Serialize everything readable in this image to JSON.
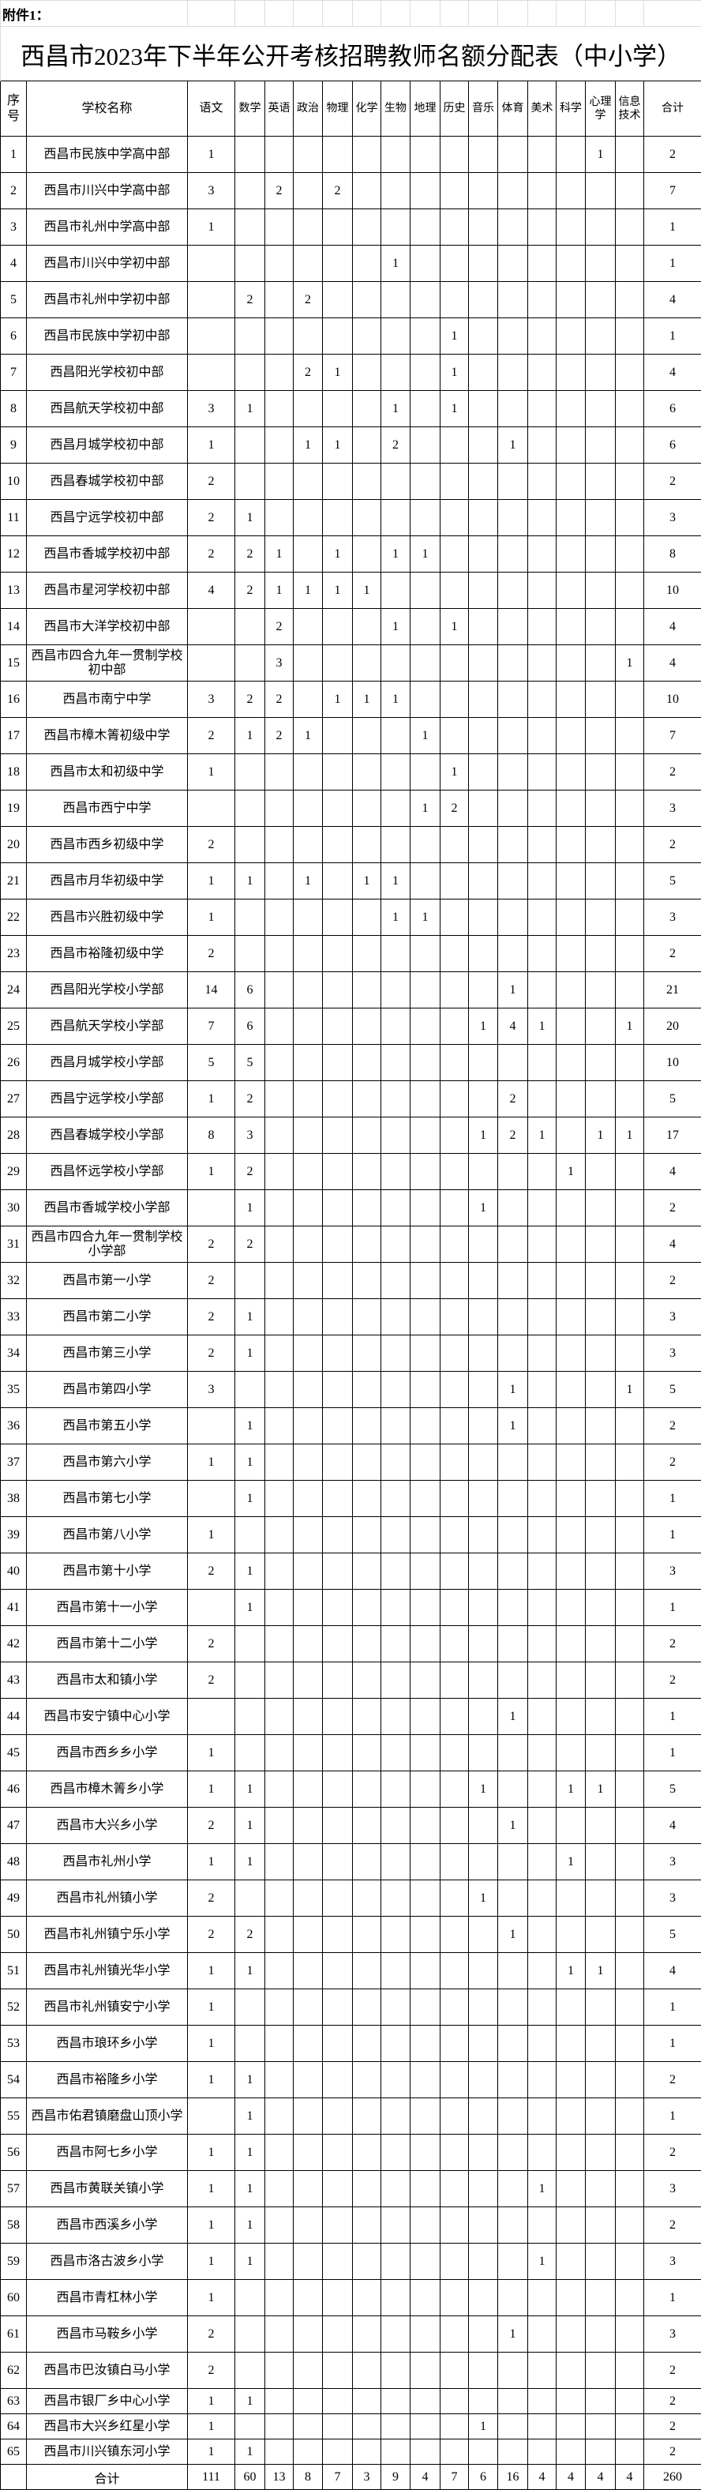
{
  "attachment_label": "附件1：",
  "title": "西昌市2023年下半年公开考核招聘教师名额分配表（中小学）",
  "header": {
    "index": "序号",
    "school": "学校名称",
    "subjects": [
      "语文",
      "数学",
      "英语",
      "政治",
      "物理",
      "化学",
      "生物",
      "地理",
      "历史",
      "音乐",
      "体育",
      "美术",
      "科学",
      "心理学",
      "信息技术"
    ],
    "total": "合计"
  },
  "rows": [
    {
      "no": "1",
      "name": "西昌市民族中学高中部",
      "v": [
        1,
        null,
        null,
        null,
        null,
        null,
        null,
        null,
        null,
        null,
        null,
        null,
        null,
        1,
        null
      ],
      "total": 2
    },
    {
      "no": "2",
      "name": "西昌市川兴中学高中部",
      "v": [
        3,
        null,
        2,
        null,
        2,
        null,
        null,
        null,
        null,
        null,
        null,
        null,
        null,
        null,
        null
      ],
      "total": 7
    },
    {
      "no": "3",
      "name": "西昌市礼州中学高中部",
      "v": [
        1,
        null,
        null,
        null,
        null,
        null,
        null,
        null,
        null,
        null,
        null,
        null,
        null,
        null,
        null
      ],
      "total": 1
    },
    {
      "no": "4",
      "name": "西昌市川兴中学初中部",
      "v": [
        null,
        null,
        null,
        null,
        null,
        null,
        1,
        null,
        null,
        null,
        null,
        null,
        null,
        null,
        null
      ],
      "total": 1
    },
    {
      "no": "5",
      "name": "西昌市礼州中学初中部",
      "v": [
        null,
        2,
        null,
        2,
        null,
        null,
        null,
        null,
        null,
        null,
        null,
        null,
        null,
        null,
        null
      ],
      "total": 4
    },
    {
      "no": "6",
      "name": "西昌市民族中学初中部",
      "v": [
        null,
        null,
        null,
        null,
        null,
        null,
        null,
        null,
        1,
        null,
        null,
        null,
        null,
        null,
        null
      ],
      "total": 1
    },
    {
      "no": "7",
      "name": "西昌阳光学校初中部",
      "v": [
        null,
        null,
        null,
        2,
        1,
        null,
        null,
        null,
        1,
        null,
        null,
        null,
        null,
        null,
        null
      ],
      "total": 4
    },
    {
      "no": "8",
      "name": "西昌航天学校初中部",
      "v": [
        3,
        1,
        null,
        null,
        null,
        null,
        1,
        null,
        1,
        null,
        null,
        null,
        null,
        null,
        null
      ],
      "total": 6
    },
    {
      "no": "9",
      "name": "西昌月城学校初中部",
      "v": [
        1,
        null,
        null,
        1,
        1,
        null,
        2,
        null,
        null,
        null,
        1,
        null,
        null,
        null,
        null
      ],
      "total": 6
    },
    {
      "no": "10",
      "name": "西昌春城学校初中部",
      "v": [
        2,
        null,
        null,
        null,
        null,
        null,
        null,
        null,
        null,
        null,
        null,
        null,
        null,
        null,
        null
      ],
      "total": 2
    },
    {
      "no": "11",
      "name": "西昌宁远学校初中部",
      "v": [
        2,
        1,
        null,
        null,
        null,
        null,
        null,
        null,
        null,
        null,
        null,
        null,
        null,
        null,
        null
      ],
      "total": 3
    },
    {
      "no": "12",
      "name": "西昌市香城学校初中部",
      "v": [
        2,
        2,
        1,
        null,
        1,
        null,
        1,
        1,
        null,
        null,
        null,
        null,
        null,
        null,
        null
      ],
      "total": 8
    },
    {
      "no": "13",
      "name": "西昌市星河学校初中部",
      "v": [
        4,
        2,
        1,
        1,
        1,
        1,
        null,
        null,
        null,
        null,
        null,
        null,
        null,
        null,
        null
      ],
      "total": 10
    },
    {
      "no": "14",
      "name": "西昌市大洋学校初中部",
      "v": [
        null,
        null,
        2,
        null,
        null,
        null,
        1,
        null,
        1,
        null,
        null,
        null,
        null,
        null,
        null
      ],
      "total": 4
    },
    {
      "no": "15",
      "name": "西昌市四合九年一贯制学校初中部",
      "v": [
        null,
        null,
        3,
        null,
        null,
        null,
        null,
        null,
        null,
        null,
        null,
        null,
        null,
        null,
        1
      ],
      "total": 4
    },
    {
      "no": "16",
      "name": "西昌市南宁中学",
      "v": [
        3,
        2,
        2,
        null,
        1,
        1,
        1,
        null,
        null,
        null,
        null,
        null,
        null,
        null,
        null
      ],
      "total": 10
    },
    {
      "no": "17",
      "name": "西昌市樟木箐初级中学",
      "v": [
        2,
        1,
        2,
        1,
        null,
        null,
        null,
        1,
        null,
        null,
        null,
        null,
        null,
        null,
        null
      ],
      "total": 7
    },
    {
      "no": "18",
      "name": "西昌市太和初级中学",
      "v": [
        1,
        null,
        null,
        null,
        null,
        null,
        null,
        null,
        1,
        null,
        null,
        null,
        null,
        null,
        null
      ],
      "total": 2
    },
    {
      "no": "19",
      "name": "西昌市西宁中学",
      "v": [
        null,
        null,
        null,
        null,
        null,
        null,
        null,
        1,
        2,
        null,
        null,
        null,
        null,
        null,
        null
      ],
      "total": 3
    },
    {
      "no": "20",
      "name": "西昌市西乡初级中学",
      "v": [
        2,
        null,
        null,
        null,
        null,
        null,
        null,
        null,
        null,
        null,
        null,
        null,
        null,
        null,
        null
      ],
      "total": 2
    },
    {
      "no": "21",
      "name": "西昌市月华初级中学",
      "v": [
        1,
        1,
        null,
        1,
        null,
        1,
        1,
        null,
        null,
        null,
        null,
        null,
        null,
        null,
        null
      ],
      "total": 5
    },
    {
      "no": "22",
      "name": "西昌市兴胜初级中学",
      "v": [
        1,
        null,
        null,
        null,
        null,
        null,
        1,
        1,
        null,
        null,
        null,
        null,
        null,
        null,
        null
      ],
      "total": 3
    },
    {
      "no": "23",
      "name": "西昌市裕隆初级中学",
      "v": [
        2,
        null,
        null,
        null,
        null,
        null,
        null,
        null,
        null,
        null,
        null,
        null,
        null,
        null,
        null
      ],
      "total": 2
    },
    {
      "no": "24",
      "name": "西昌阳光学校小学部",
      "v": [
        14,
        6,
        null,
        null,
        null,
        null,
        null,
        null,
        null,
        null,
        1,
        null,
        null,
        null,
        null
      ],
      "total": 21
    },
    {
      "no": "25",
      "name": "西昌航天学校小学部",
      "v": [
        7,
        6,
        null,
        null,
        null,
        null,
        null,
        null,
        null,
        1,
        4,
        1,
        null,
        null,
        1
      ],
      "total": 20
    },
    {
      "no": "26",
      "name": "西昌月城学校小学部",
      "v": [
        5,
        5,
        null,
        null,
        null,
        null,
        null,
        null,
        null,
        null,
        null,
        null,
        null,
        null,
        null
      ],
      "total": 10
    },
    {
      "no": "27",
      "name": "西昌宁远学校小学部",
      "v": [
        1,
        2,
        null,
        null,
        null,
        null,
        null,
        null,
        null,
        null,
        2,
        null,
        null,
        null,
        null
      ],
      "total": 5
    },
    {
      "no": "28",
      "name": "西昌春城学校小学部",
      "v": [
        8,
        3,
        null,
        null,
        null,
        null,
        null,
        null,
        null,
        1,
        2,
        1,
        null,
        1,
        1
      ],
      "total": 17
    },
    {
      "no": "29",
      "name": "西昌怀远学校小学部",
      "v": [
        1,
        2,
        null,
        null,
        null,
        null,
        null,
        null,
        null,
        null,
        null,
        null,
        1,
        null,
        null
      ],
      "total": 4
    },
    {
      "no": "30",
      "name": "西昌市香城学校小学部",
      "v": [
        null,
        1,
        null,
        null,
        null,
        null,
        null,
        null,
        null,
        1,
        null,
        null,
        null,
        null,
        null
      ],
      "total": 2
    },
    {
      "no": "31",
      "name": "西昌市四合九年一贯制学校小学部",
      "v": [
        2,
        2,
        null,
        null,
        null,
        null,
        null,
        null,
        null,
        null,
        null,
        null,
        null,
        null,
        null
      ],
      "total": 4
    },
    {
      "no": "32",
      "name": "西昌市第一小学",
      "v": [
        2,
        null,
        null,
        null,
        null,
        null,
        null,
        null,
        null,
        null,
        null,
        null,
        null,
        null,
        null
      ],
      "total": 2
    },
    {
      "no": "33",
      "name": "西昌市第二小学",
      "v": [
        2,
        1,
        null,
        null,
        null,
        null,
        null,
        null,
        null,
        null,
        null,
        null,
        null,
        null,
        null
      ],
      "total": 3
    },
    {
      "no": "34",
      "name": "西昌市第三小学",
      "v": [
        2,
        1,
        null,
        null,
        null,
        null,
        null,
        null,
        null,
        null,
        null,
        null,
        null,
        null,
        null
      ],
      "total": 3
    },
    {
      "no": "35",
      "name": "西昌市第四小学",
      "v": [
        3,
        null,
        null,
        null,
        null,
        null,
        null,
        null,
        null,
        null,
        1,
        null,
        null,
        null,
        1
      ],
      "total": 5
    },
    {
      "no": "36",
      "name": "西昌市第五小学",
      "v": [
        null,
        1,
        null,
        null,
        null,
        null,
        null,
        null,
        null,
        null,
        1,
        null,
        null,
        null,
        null
      ],
      "total": 2
    },
    {
      "no": "37",
      "name": "西昌市第六小学",
      "v": [
        1,
        1,
        null,
        null,
        null,
        null,
        null,
        null,
        null,
        null,
        null,
        null,
        null,
        null,
        null
      ],
      "total": 2
    },
    {
      "no": "38",
      "name": "西昌市第七小学",
      "v": [
        null,
        1,
        null,
        null,
        null,
        null,
        null,
        null,
        null,
        null,
        null,
        null,
        null,
        null,
        null
      ],
      "total": 1
    },
    {
      "no": "39",
      "name": "西昌市第八小学",
      "v": [
        1,
        null,
        null,
        null,
        null,
        null,
        null,
        null,
        null,
        null,
        null,
        null,
        null,
        null,
        null
      ],
      "total": 1
    },
    {
      "no": "40",
      "name": "西昌市第十小学",
      "v": [
        2,
        1,
        null,
        null,
        null,
        null,
        null,
        null,
        null,
        null,
        null,
        null,
        null,
        null,
        null
      ],
      "total": 3
    },
    {
      "no": "41",
      "name": "西昌市第十一小学",
      "v": [
        null,
        1,
        null,
        null,
        null,
        null,
        null,
        null,
        null,
        null,
        null,
        null,
        null,
        null,
        null
      ],
      "total": 1
    },
    {
      "no": "42",
      "name": "西昌市第十二小学",
      "v": [
        2,
        null,
        null,
        null,
        null,
        null,
        null,
        null,
        null,
        null,
        null,
        null,
        null,
        null,
        null
      ],
      "total": 2
    },
    {
      "no": "43",
      "name": "西昌市太和镇小学",
      "v": [
        2,
        null,
        null,
        null,
        null,
        null,
        null,
        null,
        null,
        null,
        null,
        null,
        null,
        null,
        null
      ],
      "total": 2
    },
    {
      "no": "44",
      "name": "西昌市安宁镇中心小学",
      "v": [
        null,
        null,
        null,
        null,
        null,
        null,
        null,
        null,
        null,
        null,
        1,
        null,
        null,
        null,
        null
      ],
      "total": 1
    },
    {
      "no": "45",
      "name": "西昌市西乡乡小学",
      "v": [
        1,
        null,
        null,
        null,
        null,
        null,
        null,
        null,
        null,
        null,
        null,
        null,
        null,
        null,
        null
      ],
      "total": 1
    },
    {
      "no": "46",
      "name": "西昌市樟木箐乡小学",
      "v": [
        1,
        1,
        null,
        null,
        null,
        null,
        null,
        null,
        null,
        1,
        null,
        null,
        1,
        1,
        null
      ],
      "total": 5
    },
    {
      "no": "47",
      "name": "西昌市大兴乡小学",
      "v": [
        2,
        1,
        null,
        null,
        null,
        null,
        null,
        null,
        null,
        null,
        1,
        null,
        null,
        null,
        null
      ],
      "total": 4
    },
    {
      "no": "48",
      "name": "西昌市礼州小学",
      "v": [
        1,
        1,
        null,
        null,
        null,
        null,
        null,
        null,
        null,
        null,
        null,
        null,
        1,
        null,
        null
      ],
      "total": 3
    },
    {
      "no": "49",
      "name": "西昌市礼州镇小学",
      "v": [
        2,
        null,
        null,
        null,
        null,
        null,
        null,
        null,
        null,
        1,
        null,
        null,
        null,
        null,
        null
      ],
      "total": 3
    },
    {
      "no": "50",
      "name": "西昌市礼州镇宁乐小学",
      "v": [
        2,
        2,
        null,
        null,
        null,
        null,
        null,
        null,
        null,
        null,
        1,
        null,
        null,
        null,
        null
      ],
      "total": 5
    },
    {
      "no": "51",
      "name": "西昌市礼州镇光华小学",
      "v": [
        1,
        1,
        null,
        null,
        null,
        null,
        null,
        null,
        null,
        null,
        null,
        null,
        1,
        1,
        null
      ],
      "total": 4
    },
    {
      "no": "52",
      "name": "西昌市礼州镇安宁小学",
      "v": [
        1,
        null,
        null,
        null,
        null,
        null,
        null,
        null,
        null,
        null,
        null,
        null,
        null,
        null,
        null
      ],
      "total": 1
    },
    {
      "no": "53",
      "name": "西昌市琅环乡小学",
      "v": [
        1,
        null,
        null,
        null,
        null,
        null,
        null,
        null,
        null,
        null,
        null,
        null,
        null,
        null,
        null
      ],
      "total": 1
    },
    {
      "no": "54",
      "name": "西昌市裕隆乡小学",
      "v": [
        1,
        1,
        null,
        null,
        null,
        null,
        null,
        null,
        null,
        null,
        null,
        null,
        null,
        null,
        null
      ],
      "total": 2
    },
    {
      "no": "55",
      "name": "西昌市佑君镇磨盘山顶小学",
      "v": [
        null,
        1,
        null,
        null,
        null,
        null,
        null,
        null,
        null,
        null,
        null,
        null,
        null,
        null,
        null
      ],
      "total": 1
    },
    {
      "no": "56",
      "name": "西昌市阿七乡小学",
      "v": [
        1,
        1,
        null,
        null,
        null,
        null,
        null,
        null,
        null,
        null,
        null,
        null,
        null,
        null,
        null
      ],
      "total": 2
    },
    {
      "no": "57",
      "name": "西昌市黄联关镇小学",
      "v": [
        1,
        1,
        null,
        null,
        null,
        null,
        null,
        null,
        null,
        null,
        null,
        1,
        null,
        null,
        null
      ],
      "total": 3
    },
    {
      "no": "58",
      "name": "西昌市西溪乡小学",
      "v": [
        1,
        1,
        null,
        null,
        null,
        null,
        null,
        null,
        null,
        null,
        null,
        null,
        null,
        null,
        null
      ],
      "total": 2
    },
    {
      "no": "59",
      "name": "西昌市洛古波乡小学",
      "v": [
        1,
        1,
        null,
        null,
        null,
        null,
        null,
        null,
        null,
        null,
        null,
        1,
        null,
        null,
        null
      ],
      "total": 3
    },
    {
      "no": "60",
      "name": "西昌市青杠林小学",
      "v": [
        1,
        null,
        null,
        null,
        null,
        null,
        null,
        null,
        null,
        null,
        null,
        null,
        null,
        null,
        null
      ],
      "total": 1
    },
    {
      "no": "61",
      "name": "西昌市马鞍乡小学",
      "v": [
        2,
        null,
        null,
        null,
        null,
        null,
        null,
        null,
        null,
        null,
        1,
        null,
        null,
        null,
        null
      ],
      "total": 3
    },
    {
      "no": "62",
      "name": "西昌市巴汝镇白马小学",
      "v": [
        2,
        null,
        null,
        null,
        null,
        null,
        null,
        null,
        null,
        null,
        null,
        null,
        null,
        null,
        null
      ],
      "total": 2
    },
    {
      "no": "63",
      "name": "西昌市银厂乡中心小学",
      "v": [
        1,
        1,
        null,
        null,
        null,
        null,
        null,
        null,
        null,
        null,
        null,
        null,
        null,
        null,
        null
      ],
      "total": 2
    },
    {
      "no": "64",
      "name": "西昌市大兴乡红星小学",
      "v": [
        1,
        null,
        null,
        null,
        null,
        null,
        null,
        null,
        null,
        1,
        null,
        null,
        null,
        null,
        null
      ],
      "total": 2
    },
    {
      "no": "65",
      "name": "西昌市川兴镇东河小学",
      "v": [
        1,
        1,
        null,
        null,
        null,
        null,
        null,
        null,
        null,
        null,
        null,
        null,
        null,
        null,
        null
      ],
      "total": 2
    }
  ],
  "totals": {
    "label": "合计",
    "v": [
      111,
      60,
      13,
      8,
      7,
      3,
      9,
      4,
      7,
      6,
      16,
      4,
      4,
      4,
      4
    ],
    "total": 260
  }
}
